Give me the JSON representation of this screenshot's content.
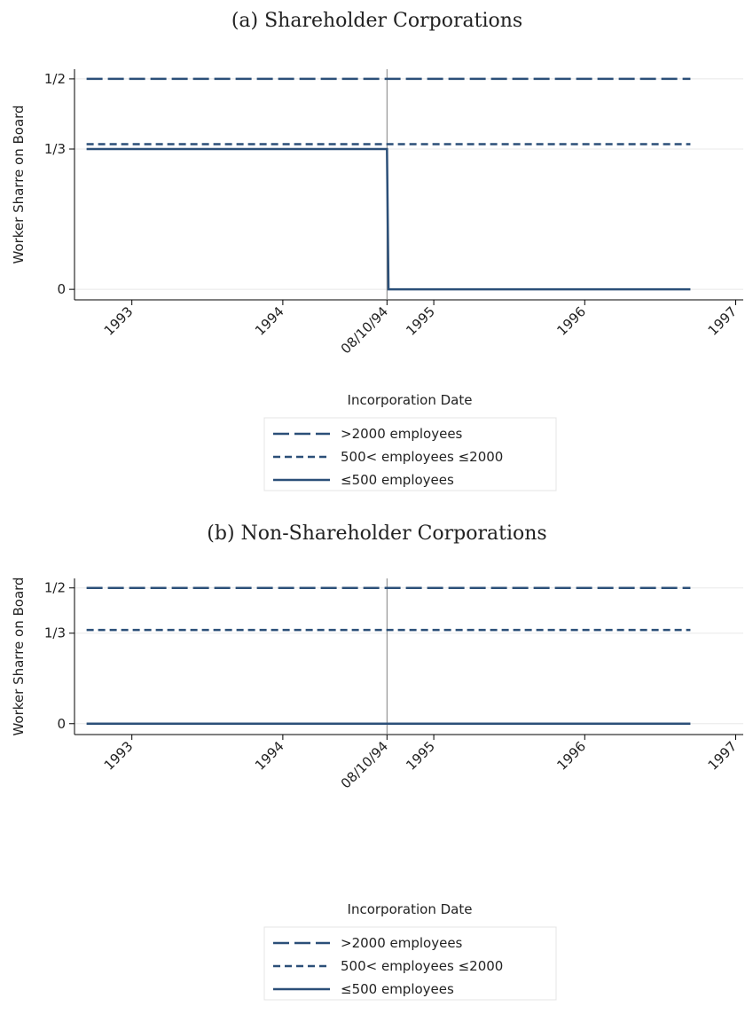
{
  "chart_data": [
    {
      "type": "line",
      "title": "(a) Shareholder Corporations",
      "ylabel": "Worker Sharre on Board",
      "xlabel": "Incorporation Date",
      "xlim": [
        1992.62,
        1997.05
      ],
      "ylim": [
        -0.025,
        0.523
      ],
      "xticks": [
        1993,
        1994,
        {
          "value": 1994.69,
          "label": "08/10/94"
        },
        1995,
        1996,
        1997
      ],
      "yticks": [
        0,
        {
          "value": 0.3333,
          "label": "1/3"
        },
        {
          "value": 0.5,
          "label": "1/2"
        }
      ],
      "grid": true,
      "vline": 1994.69,
      "vline_color": "#808080",
      "series": [
        {
          "name": ">2000 employees",
          "color": "#2b4f78",
          "dash": "long",
          "x": [
            1992.7,
            1996.7
          ],
          "values": [
            0.5,
            0.5
          ]
        },
        {
          "name": "500< employees ≤2000",
          "color": "#2b4f78",
          "dash": "short",
          "x": [
            1992.7,
            1996.7
          ],
          "values": [
            0.345,
            0.345
          ]
        },
        {
          "name": "≤500 employees",
          "color": "#2b4f78",
          "dash": "solid",
          "x": [
            1992.7,
            1994.69,
            1994.7,
            1996.7
          ],
          "values": [
            0.3333,
            0.3333,
            0,
            0
          ]
        }
      ]
    },
    {
      "type": "line",
      "title": "(b) Non-Shareholder Corporations",
      "ylabel": "Worker Sharre on Board",
      "xlabel": "Incorporation Date",
      "xlim": [
        1992.62,
        1997.05
      ],
      "ylim": [
        -0.04,
        0.535
      ],
      "xticks": [
        1993,
        1994,
        {
          "value": 1994.69,
          "label": "08/10/94"
        },
        1995,
        1996,
        1997
      ],
      "yticks": [
        0,
        {
          "value": 0.3333,
          "label": "1/3"
        },
        {
          "value": 0.5,
          "label": "1/2"
        }
      ],
      "grid": true,
      "vline": 1994.69,
      "vline_color": "#808080",
      "series": [
        {
          "name": ">2000 employees",
          "color": "#2b4f78",
          "dash": "long",
          "x": [
            1992.7,
            1996.7
          ],
          "values": [
            0.5,
            0.5
          ]
        },
        {
          "name": "500< employees ≤2000",
          "color": "#2b4f78",
          "dash": "short",
          "x": [
            1992.7,
            1996.7
          ],
          "values": [
            0.345,
            0.345
          ]
        },
        {
          "name": "≤500 employees",
          "color": "#2b4f78",
          "dash": "solid",
          "x": [
            1992.7,
            1996.7
          ],
          "values": [
            0,
            0
          ]
        }
      ]
    }
  ]
}
